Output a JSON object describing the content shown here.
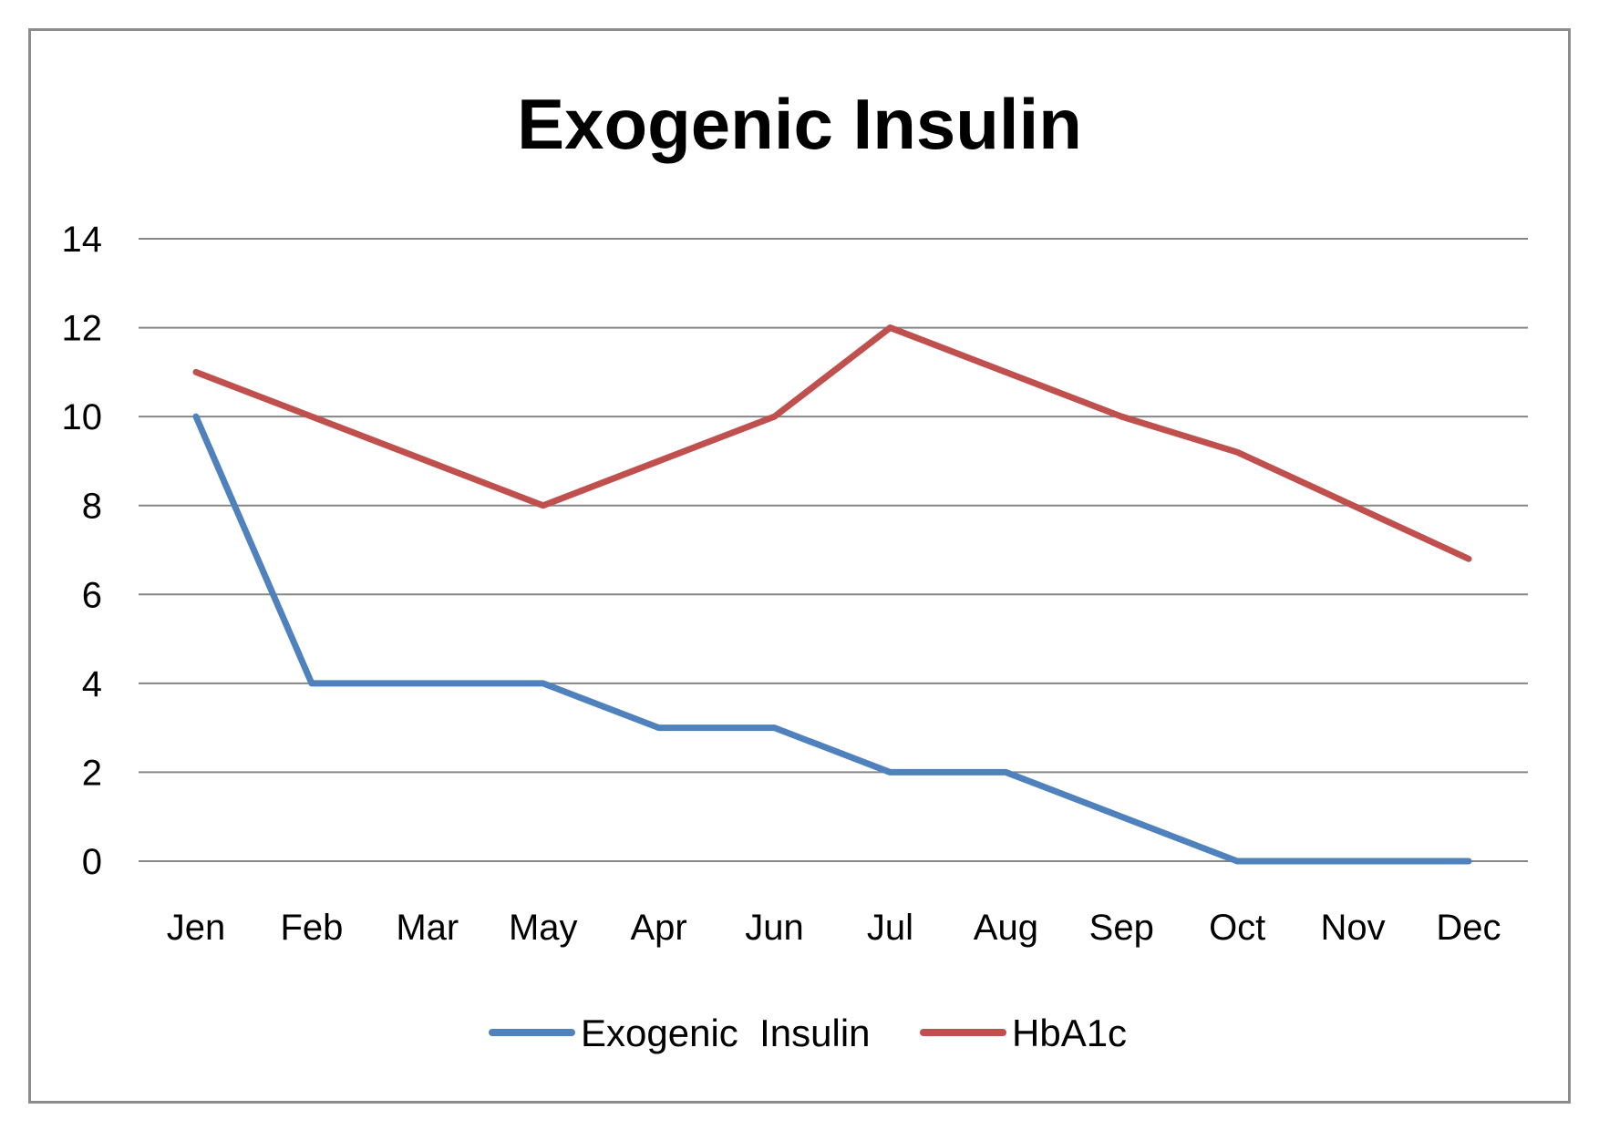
{
  "chart_data": {
    "type": "line",
    "title": "Exogenic Insulin",
    "xlabel": "",
    "ylabel": "",
    "categories": [
      "Jen",
      "Feb",
      "Mar",
      "May",
      "Apr",
      "Jun",
      "Jul",
      "Aug",
      "Sep",
      "Oct",
      "Nov",
      "Dec"
    ],
    "series": [
      {
        "name": "Exogenic  Insulin",
        "color": "#4f81bd",
        "values": [
          10,
          4,
          4,
          4,
          3,
          3,
          2,
          2,
          1,
          0,
          0,
          0
        ]
      },
      {
        "name": "HbA1c",
        "color": "#c0504d",
        "values": [
          11,
          10,
          9,
          8,
          9,
          10,
          12,
          11,
          10,
          9.2,
          8,
          6.8
        ]
      }
    ],
    "ylim": [
      0,
      14
    ],
    "yticks": [
      0,
      2,
      4,
      6,
      8,
      10,
      12,
      14
    ],
    "grid": true,
    "gridline_color": "#868686",
    "legend_position": "bottom"
  }
}
